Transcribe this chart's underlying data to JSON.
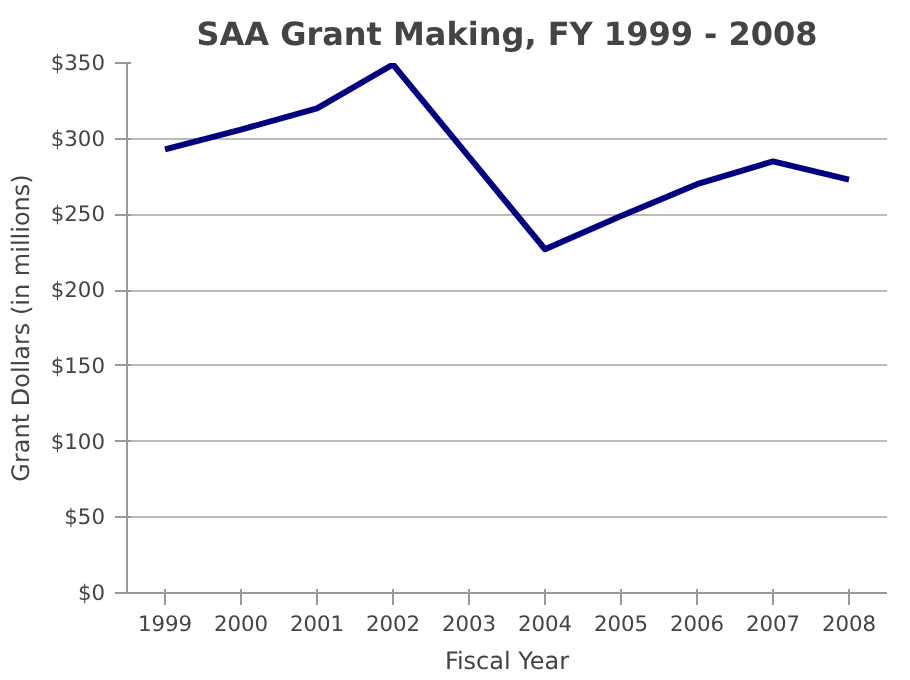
{
  "chart_data": {
    "type": "line",
    "title": "SAA Grant Making, FY 1999 - 2008",
    "xlabel": "Fiscal Year",
    "ylabel": "Grant Dollars (in millions)",
    "categories": [
      "1999",
      "2000",
      "2001",
      "2002",
      "2003",
      "2004",
      "2005",
      "2006",
      "2007",
      "2008"
    ],
    "series": [
      {
        "color": "#000080",
        "values": [
          293,
          306,
          320,
          349,
          288,
          227,
          249,
          270,
          285,
          273
        ]
      }
    ],
    "ylim": [
      0,
      350
    ],
    "yticks": [
      {
        "value": 0,
        "label": "$0"
      },
      {
        "value": 50,
        "label": "$50"
      },
      {
        "value": 100,
        "label": "$100"
      },
      {
        "value": 150,
        "label": "$150"
      },
      {
        "value": 200,
        "label": "$200"
      },
      {
        "value": 250,
        "label": "$250"
      },
      {
        "value": 300,
        "label": "$300"
      },
      {
        "value": 350,
        "label": "$350"
      }
    ],
    "grid": "y",
    "marker": "none",
    "line_style": "solid"
  }
}
